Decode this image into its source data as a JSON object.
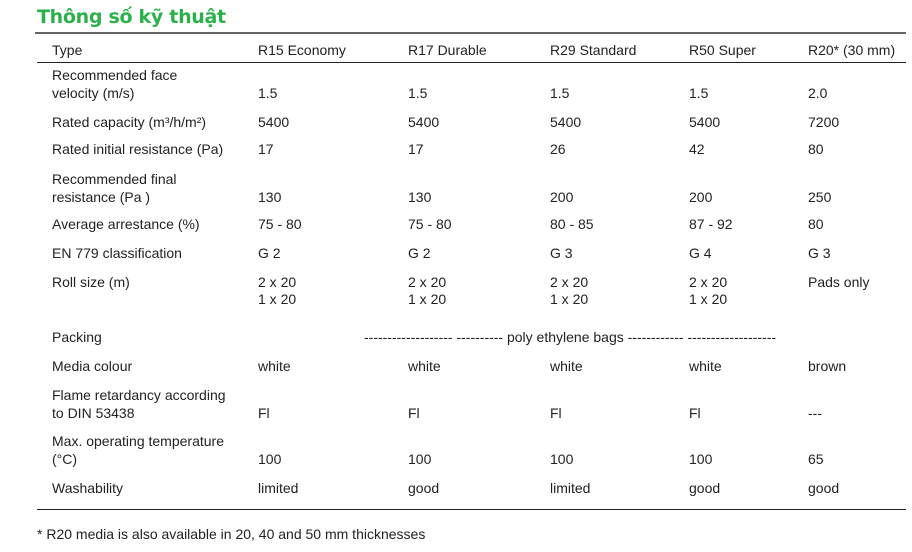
{
  "title": "Thông số kỹ thuật",
  "header": [
    "Type",
    "R15 Economy",
    "R17 Durable",
    "R29 Standard",
    "R50 Super",
    "R20* (30 mm)"
  ],
  "rows": [
    {
      "label": [
        "Recommended face",
        "velocity (m/s)"
      ],
      "values": [
        "1.5",
        "1.5",
        "1.5",
        "1.5",
        "2.0"
      ]
    },
    {
      "label": [
        "Rated capacity (m³/h/m²)"
      ],
      "values": [
        "5400",
        "5400",
        "5400",
        "5400",
        "7200"
      ]
    },
    {
      "label": [
        "Rated initial resistance (Pa)"
      ],
      "values": [
        "17",
        "17",
        "26",
        "42",
        "80"
      ]
    },
    {
      "label": [
        "Recommended final",
        "resistance (Pa )"
      ],
      "values": [
        "130",
        "130",
        "200",
        "200",
        "250"
      ]
    },
    {
      "label": [
        "Average arrestance (%)"
      ],
      "values": [
        "75 - 80",
        "75 - 80",
        "80 - 85",
        "87 - 92",
        "80"
      ]
    },
    {
      "label": [
        "EN 779 classification"
      ],
      "values": [
        "G 2",
        "G 2",
        "G 3",
        "G 4",
        "G 3"
      ]
    },
    {
      "label": [
        "Roll size (m)"
      ],
      "values": [
        [
          "2 x 20",
          "1 x 20"
        ],
        [
          "2 x 20",
          "1 x 20"
        ],
        [
          "2 x 20",
          "1 x 20"
        ],
        [
          "2 x 20",
          "1 x 20"
        ],
        [
          "Pads only"
        ]
      ]
    },
    {
      "label": [
        "Packing"
      ],
      "values": []
    },
    {
      "label": [
        "Media colour"
      ],
      "values": [
        "white",
        "white",
        "white",
        "white",
        "brown"
      ]
    },
    {
      "label": [
        "Flame retardancy according",
        "to DIN 53438"
      ],
      "values": [
        "Fl",
        "Fl",
        "Fl",
        "Fl",
        "---"
      ]
    },
    {
      "label": [
        "Max. operating temperature",
        "(°C)"
      ],
      "values": [
        "100",
        "100",
        "100",
        "100",
        "65"
      ]
    },
    {
      "label": [
        "Washability"
      ],
      "values": [
        "limited",
        "good",
        "limited",
        "good",
        "good"
      ]
    }
  ],
  "packing_text": "------------------- ----------  poly ethylene bags  ------------ -------------------",
  "footnote": "* R20 media is also available in 20, 40 and 50 mm thicknesses"
}
